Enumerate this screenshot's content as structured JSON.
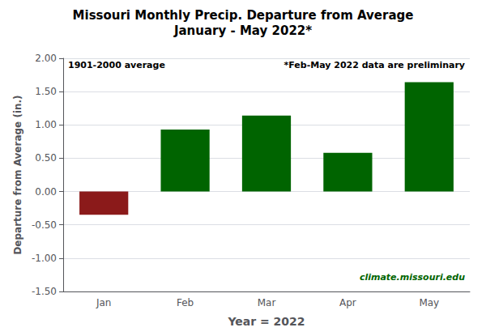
{
  "chart_data": {
    "type": "bar",
    "title": "Missouri Monthly Precip. Departure from Average",
    "subtitle": "January - May 2022*",
    "xlabel": "Year = 2022",
    "ylabel": "Departure from Average (in.)",
    "categories": [
      "Jan",
      "Feb",
      "Mar",
      "Apr",
      "May"
    ],
    "values": [
      -0.35,
      0.93,
      1.14,
      0.58,
      1.64
    ],
    "colors": [
      "#8B1A1A",
      "#006400",
      "#006400",
      "#006400",
      "#006400"
    ],
    "ylim": [
      -1.5,
      2.0
    ],
    "yticks": [
      {
        "value": -1.5,
        "label": "-1.50"
      },
      {
        "value": -1.0,
        "label": "-1.00"
      },
      {
        "value": -0.5,
        "label": "-0.50"
      },
      {
        "value": 0,
        "label": "0.00"
      },
      {
        "value": 0.5,
        "label": "0.50"
      },
      {
        "value": 1.0,
        "label": "1.00"
      },
      {
        "value": 1.5,
        "label": "1.50"
      },
      {
        "value": 2.0,
        "label": "2.00"
      }
    ],
    "grid": true,
    "annotations": [
      "1901-2000 average",
      "*Feb-May 2022 data are preliminary",
      "climate.missouri.edu"
    ]
  }
}
